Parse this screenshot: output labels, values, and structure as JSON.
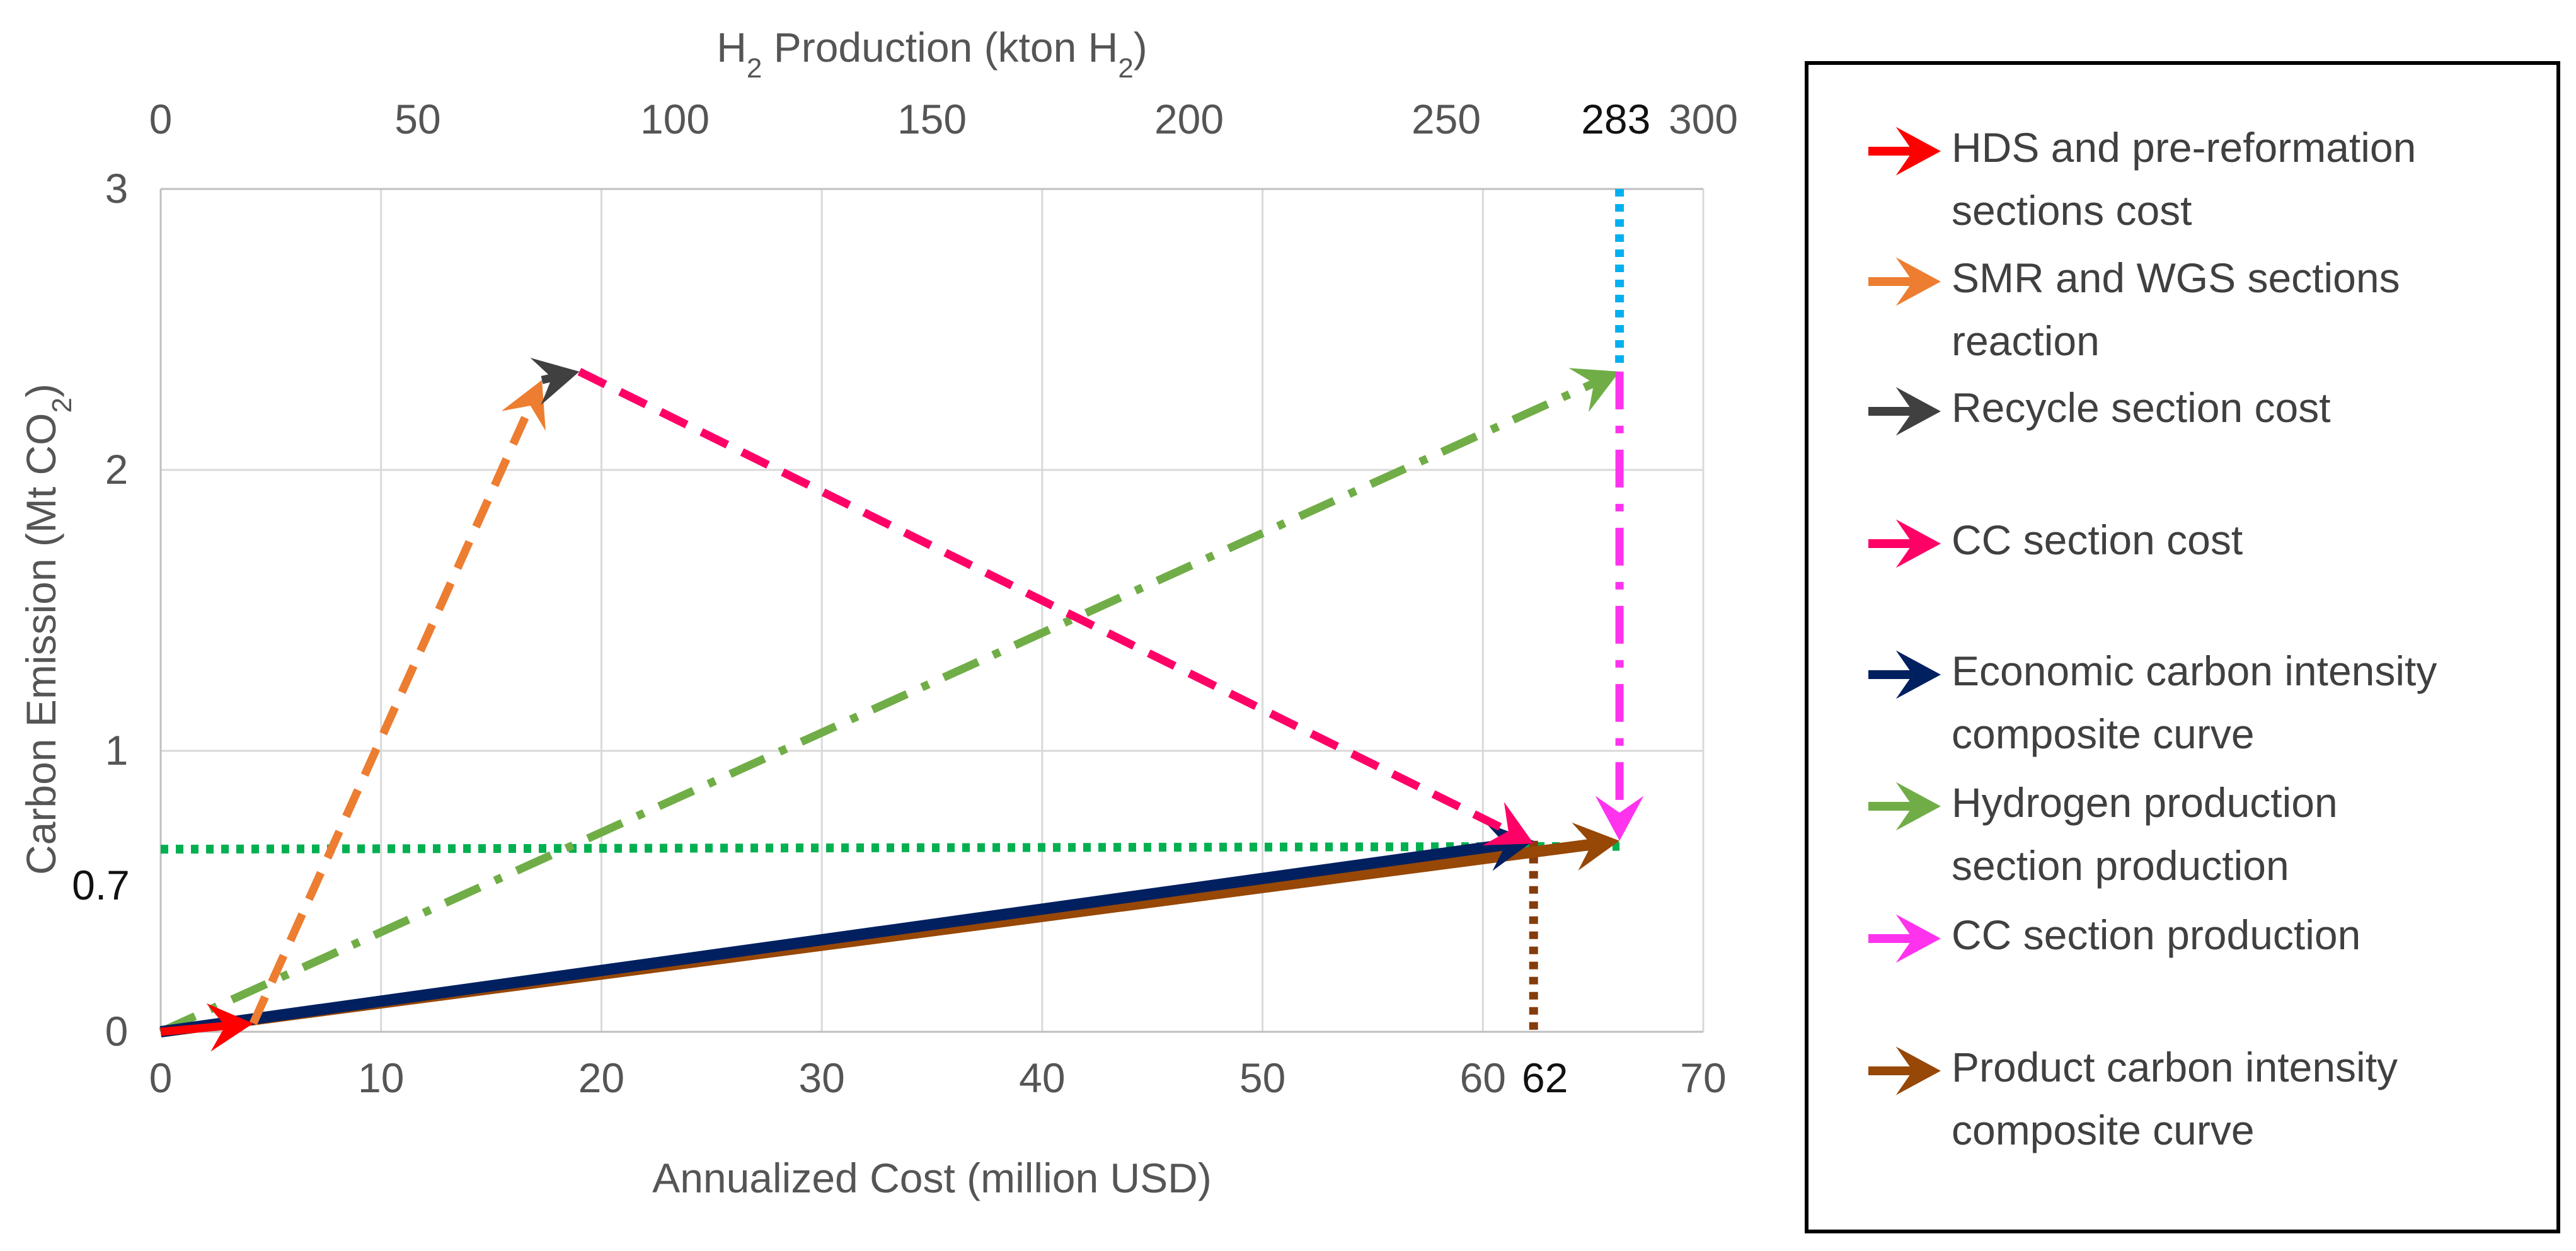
{
  "chart_data": {
    "type": "line",
    "xlabel_bottom": "Annualized Cost (million USD)",
    "xlabel_top": {
      "prefix": "H",
      "sub": "2",
      "mid": " Production (kton H",
      "sub2": "2",
      "suffix": ")"
    },
    "ylabel": {
      "prefix": "Carbon Emission (Mt CO",
      "sub": "2",
      "suffix": ")"
    },
    "x_bottom": {
      "lim": [
        0,
        70
      ],
      "ticks": [
        0,
        10,
        20,
        30,
        40,
        50,
        60,
        70
      ]
    },
    "x_top": {
      "lim": [
        0,
        300
      ],
      "ticks": [
        0,
        50,
        100,
        150,
        200,
        250,
        300
      ]
    },
    "y": {
      "lim": [
        0,
        3
      ],
      "ticks": [
        0,
        1,
        2,
        3
      ]
    },
    "grid": true,
    "annotations": [
      {
        "text": "0.7",
        "axis": "y",
        "value": 0.65
      },
      {
        "text": "62",
        "axis": "x_bottom",
        "value": 62.3
      },
      {
        "text": "283",
        "axis": "x_top",
        "value": 283
      }
    ],
    "series": [
      {
        "name": "HDS and pre-reformation sections cost",
        "color": "#ff0000",
        "style": "solid",
        "points": [
          [
            0,
            0
          ],
          [
            4.2,
            0.03
          ]
        ]
      },
      {
        "name": "SMR and WGS sections reaction",
        "color": "#ed7d31",
        "style": "dashed",
        "points": [
          [
            4.2,
            0.03
          ],
          [
            17.3,
            2.32
          ]
        ]
      },
      {
        "name": "Recycle section cost",
        "color": "#404040",
        "style": "solid",
        "points": [
          [
            17.3,
            2.32
          ],
          [
            19,
            2.35
          ]
        ]
      },
      {
        "name": "CC section cost",
        "color": "#ff0066",
        "style": "dashed",
        "points": [
          [
            19,
            2.35
          ],
          [
            62.3,
            0.67
          ]
        ]
      },
      {
        "name": "Economic carbon intensity composite curve",
        "color": "#002060",
        "style": "solid",
        "points": [
          [
            0,
            0
          ],
          [
            62.3,
            0.68
          ]
        ]
      },
      {
        "name": "Hydrogen production section production",
        "color": "#70ad47",
        "style": "dashdot",
        "points": [
          [
            0,
            0
          ],
          [
            66.2,
            2.35
          ]
        ]
      },
      {
        "name": "CC section production",
        "color": "#ff33ee",
        "style": "dashdot",
        "points": [
          [
            66.2,
            2.35
          ],
          [
            66.2,
            0.68
          ]
        ]
      },
      {
        "name": "Product carbon intensity composite curve",
        "color": "#974706",
        "style": "solid",
        "points": [
          [
            0,
            0
          ],
          [
            66.2,
            0.68
          ]
        ]
      }
    ],
    "reference_lines": [
      {
        "id": "emission-level-line",
        "color": "#00b050",
        "style": "dotted",
        "points": [
          [
            0,
            0.65
          ],
          [
            66.2,
            0.66
          ]
        ]
      },
      {
        "id": "cost-drop-line",
        "color": "#843c0c",
        "style": "dotted",
        "points": [
          [
            62.3,
            0.68
          ],
          [
            62.3,
            0
          ]
        ]
      },
      {
        "id": "production-drop-line",
        "color": "#00b0f0",
        "style": "dotted",
        "points": [
          [
            66.2,
            3
          ],
          [
            66.2,
            2.38
          ]
        ]
      }
    ],
    "legend_position": "right",
    "legend": [
      {
        "lines": [
          "HDS and pre-reformation",
          "sections cost"
        ],
        "color": "#ff0000"
      },
      {
        "lines": [
          "SMR and WGS sections",
          "reaction"
        ],
        "color": "#ed7d31"
      },
      {
        "lines": [
          "Recycle section cost"
        ],
        "color": "#404040"
      },
      {
        "lines": [
          "CC section cost"
        ],
        "color": "#ff0066"
      },
      {
        "lines": [
          "Economic carbon intensity",
          "composite curve"
        ],
        "color": "#002060"
      },
      {
        "lines": [
          "Hydrogen production",
          "section production"
        ],
        "color": "#70ad47"
      },
      {
        "lines": [
          "CC section production"
        ],
        "color": "#ff33ee"
      },
      {
        "lines": [
          "Product carbon intensity",
          "composite curve"
        ],
        "color": "#974706"
      }
    ]
  }
}
